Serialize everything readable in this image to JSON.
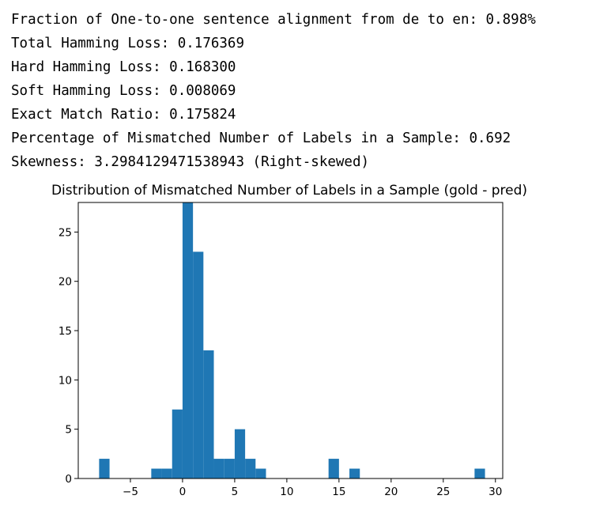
{
  "output": {
    "lines": [
      "Fraction of One-to-one sentence alignment from de to en: 0.898%",
      "Total Hamming Loss: 0.176369",
      "Hard Hamming Loss: 0.168300",
      "Soft Hamming Loss: 0.008069",
      "Exact Match Ratio: 0.175824",
      "Percentage of Mismatched Number of Labels in a Sample: 0.692",
      "Skewness: 3.2984129471538943 (Right-skewed)"
    ]
  },
  "chart_data": {
    "type": "bar",
    "title": "Distribution of Mismatched Number of Labels in a Sample (gold - pred)",
    "xlabel": "",
    "ylabel": "",
    "bar_color": "#1f77b4",
    "xlim": [
      -10.0,
      30.7
    ],
    "ylim": [
      0,
      28
    ],
    "xticks": [
      -5,
      0,
      5,
      10,
      15,
      20,
      25,
      30
    ],
    "yticks": [
      0,
      5,
      10,
      15,
      20,
      25
    ],
    "bins": [
      {
        "x0": -8,
        "x1": -7,
        "count": 2
      },
      {
        "x0": -3,
        "x1": -2,
        "count": 1
      },
      {
        "x0": -2,
        "x1": -1,
        "count": 1
      },
      {
        "x0": -1,
        "x1": 0,
        "count": 7
      },
      {
        "x0": 0,
        "x1": 1,
        "count": 28
      },
      {
        "x0": 1,
        "x1": 2,
        "count": 23
      },
      {
        "x0": 2,
        "x1": 3,
        "count": 13
      },
      {
        "x0": 3,
        "x1": 4,
        "count": 2
      },
      {
        "x0": 4,
        "x1": 5,
        "count": 2
      },
      {
        "x0": 5,
        "x1": 6,
        "count": 5
      },
      {
        "x0": 6,
        "x1": 7,
        "count": 2
      },
      {
        "x0": 7,
        "x1": 8,
        "count": 1
      },
      {
        "x0": 14,
        "x1": 15,
        "count": 2
      },
      {
        "x0": 16,
        "x1": 17,
        "count": 1
      },
      {
        "x0": 28,
        "x1": 29,
        "count": 1
      }
    ],
    "grid": false,
    "legend": "none"
  }
}
